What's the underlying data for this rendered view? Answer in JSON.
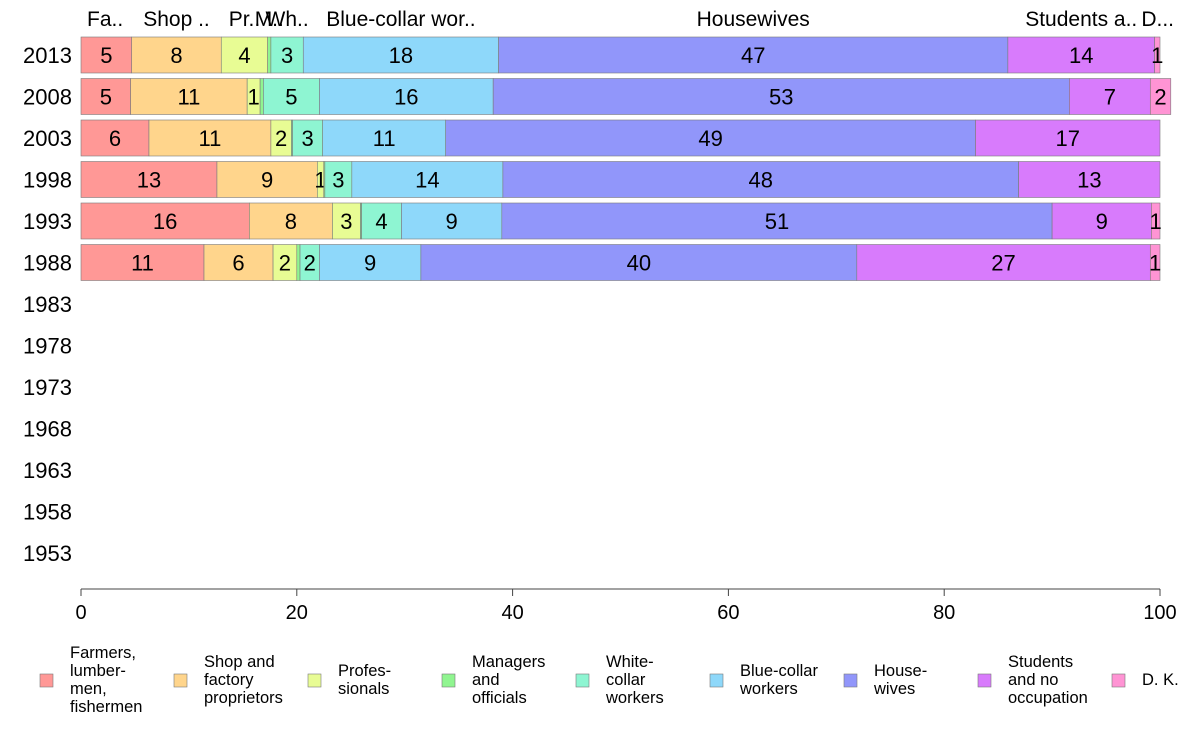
{
  "chart_data": {
    "type": "bar",
    "orientation": "horizontal",
    "stacked": true,
    "xlim": [
      0,
      100
    ],
    "x_ticks": [
      "0",
      "20",
      "40",
      "60",
      "80",
      "100"
    ],
    "categories": [
      "2013",
      "2008",
      "2003",
      "1998",
      "1993",
      "1988",
      "1983",
      "1978",
      "1973",
      "1968",
      "1963",
      "1958",
      "1953"
    ],
    "top_labels": [
      {
        "text": "Fa..",
        "series": 0
      },
      {
        "text": "Shop ..",
        "series": 1
      },
      {
        "text": "Pr..",
        "series": 2
      },
      {
        "text": "M..",
        "series": 3
      },
      {
        "text": "Wh..",
        "series": 4
      },
      {
        "text": "Blue-collar wor..",
        "series": 5
      },
      {
        "text": "Housewives",
        "series": 6
      },
      {
        "text": "Students a..",
        "series": 7
      },
      {
        "text": "D...",
        "series": 8
      }
    ],
    "series": [
      {
        "name": "Farmers, lumber- men, fishermen",
        "legend_lines": [
          "Farmers,",
          "lumber-",
          "men,",
          "fishermen"
        ],
        "color": "#ff9896",
        "values": [
          4.7,
          4.6,
          6.3,
          12.6,
          15.6,
          11.4,
          null,
          null,
          null,
          null,
          null,
          null,
          null
        ],
        "labels": [
          "5",
          "5",
          "6",
          "13",
          "16",
          "11",
          "",
          "",
          "",
          "",
          "",
          "",
          ""
        ]
      },
      {
        "name": "Shop and factory proprietors",
        "legend_lines": [
          "Shop and",
          "factory",
          "proprietors"
        ],
        "color": "#ffd58c",
        "values": [
          8.3,
          10.8,
          11.3,
          9.3,
          7.7,
          6.4,
          null,
          null,
          null,
          null,
          null,
          null,
          null
        ],
        "labels": [
          "8",
          "11",
          "11",
          "9",
          "8",
          "6",
          "",
          "",
          "",
          "",
          "",
          "",
          ""
        ]
      },
      {
        "name": "Profes- sionals",
        "legend_lines": [
          "Profes-",
          "sionals"
        ],
        "color": "#e8fc94",
        "values": [
          4.3,
          1.2,
          1.9,
          0.6,
          2.6,
          2.2,
          null,
          null,
          null,
          null,
          null,
          null,
          null
        ],
        "labels": [
          "4",
          "1",
          "2",
          "1",
          "3",
          "2",
          "",
          "",
          "",
          "",
          "",
          "",
          ""
        ]
      },
      {
        "name": "Managers and officials",
        "legend_lines": [
          "Managers",
          "and",
          "officials"
        ],
        "color": "#90f590",
        "values": [
          0.3,
          0.3,
          0.1,
          0.1,
          0.1,
          0.3,
          null,
          null,
          null,
          null,
          null,
          null,
          null
        ],
        "labels": [
          "",
          "",
          "",
          "",
          "",
          "",
          "",
          "",
          "",
          "",
          "",
          "",
          ""
        ]
      },
      {
        "name": "White- collar workers",
        "legend_lines": [
          "White-",
          "collar",
          "workers"
        ],
        "color": "#8ef5d2",
        "values": [
          3.0,
          5.2,
          2.8,
          2.5,
          3.7,
          1.8,
          null,
          null,
          null,
          null,
          null,
          null,
          null
        ],
        "labels": [
          "3",
          "5",
          "3",
          "3",
          "4",
          "2",
          "",
          "",
          "",
          "",
          "",
          "",
          ""
        ]
      },
      {
        "name": "Blue-collar workers",
        "legend_lines": [
          "Blue-collar",
          "workers"
        ],
        "color": "#8ed8fa",
        "values": [
          18.1,
          16.1,
          11.4,
          14.0,
          9.3,
          9.4,
          null,
          null,
          null,
          null,
          null,
          null,
          null
        ],
        "labels": [
          "18",
          "16",
          "11",
          "14",
          "9",
          "9",
          "",
          "",
          "",
          "",
          "",
          "",
          ""
        ]
      },
      {
        "name": "House- wives",
        "legend_lines": [
          "House-",
          "wives"
        ],
        "color": "#9196fa",
        "values": [
          47.2,
          53.4,
          49.1,
          47.8,
          51.0,
          40.4,
          null,
          null,
          null,
          null,
          null,
          null,
          null
        ],
        "labels": [
          "47",
          "53",
          "49",
          "48",
          "51",
          "40",
          "",
          "",
          "",
          "",
          "",
          "",
          ""
        ]
      },
      {
        "name": "Students and no occupation",
        "legend_lines": [
          "Students",
          "and no",
          "occupation"
        ],
        "color": "#d87bfc",
        "values": [
          13.6,
          7.5,
          17.1,
          13.1,
          9.2,
          27.2,
          null,
          null,
          null,
          null,
          null,
          null,
          null
        ],
        "labels": [
          "14",
          "7",
          "17",
          "13",
          "9",
          "27",
          "",
          "",
          "",
          "",
          "",
          "",
          ""
        ]
      },
      {
        "name": "D. K.",
        "legend_lines": [
          "D. K."
        ],
        "color": "#ff94d4",
        "values": [
          0.5,
          1.9,
          0.0,
          0.0,
          0.8,
          0.9,
          null,
          null,
          null,
          null,
          null,
          null,
          null
        ],
        "labels": [
          "1",
          "2",
          "",
          "",
          "1",
          "1",
          "",
          "",
          "",
          "",
          "",
          "",
          ""
        ]
      }
    ]
  }
}
